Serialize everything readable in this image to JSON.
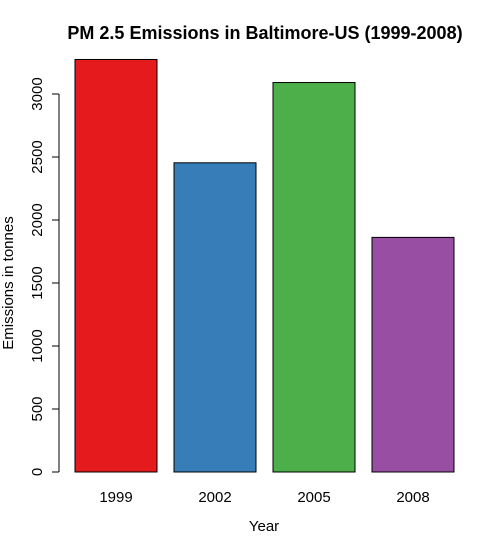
{
  "chart_data": {
    "type": "bar",
    "title": "PM 2.5 Emissions in Baltimore-US (1999-2008)",
    "xlabel": "Year",
    "ylabel": "Emissions in tonnes",
    "categories": [
      "1999",
      "2002",
      "2005",
      "2008"
    ],
    "values": [
      3274,
      2454,
      3091,
      1862
    ],
    "colors": [
      "#e41a1c",
      "#377eb8",
      "#4daf4a",
      "#984ea3"
    ],
    "ylim": [
      0,
      3300
    ],
    "yticks": [
      0,
      500,
      1000,
      1500,
      2000,
      2500,
      3000
    ],
    "grid": false,
    "legend": "none"
  }
}
